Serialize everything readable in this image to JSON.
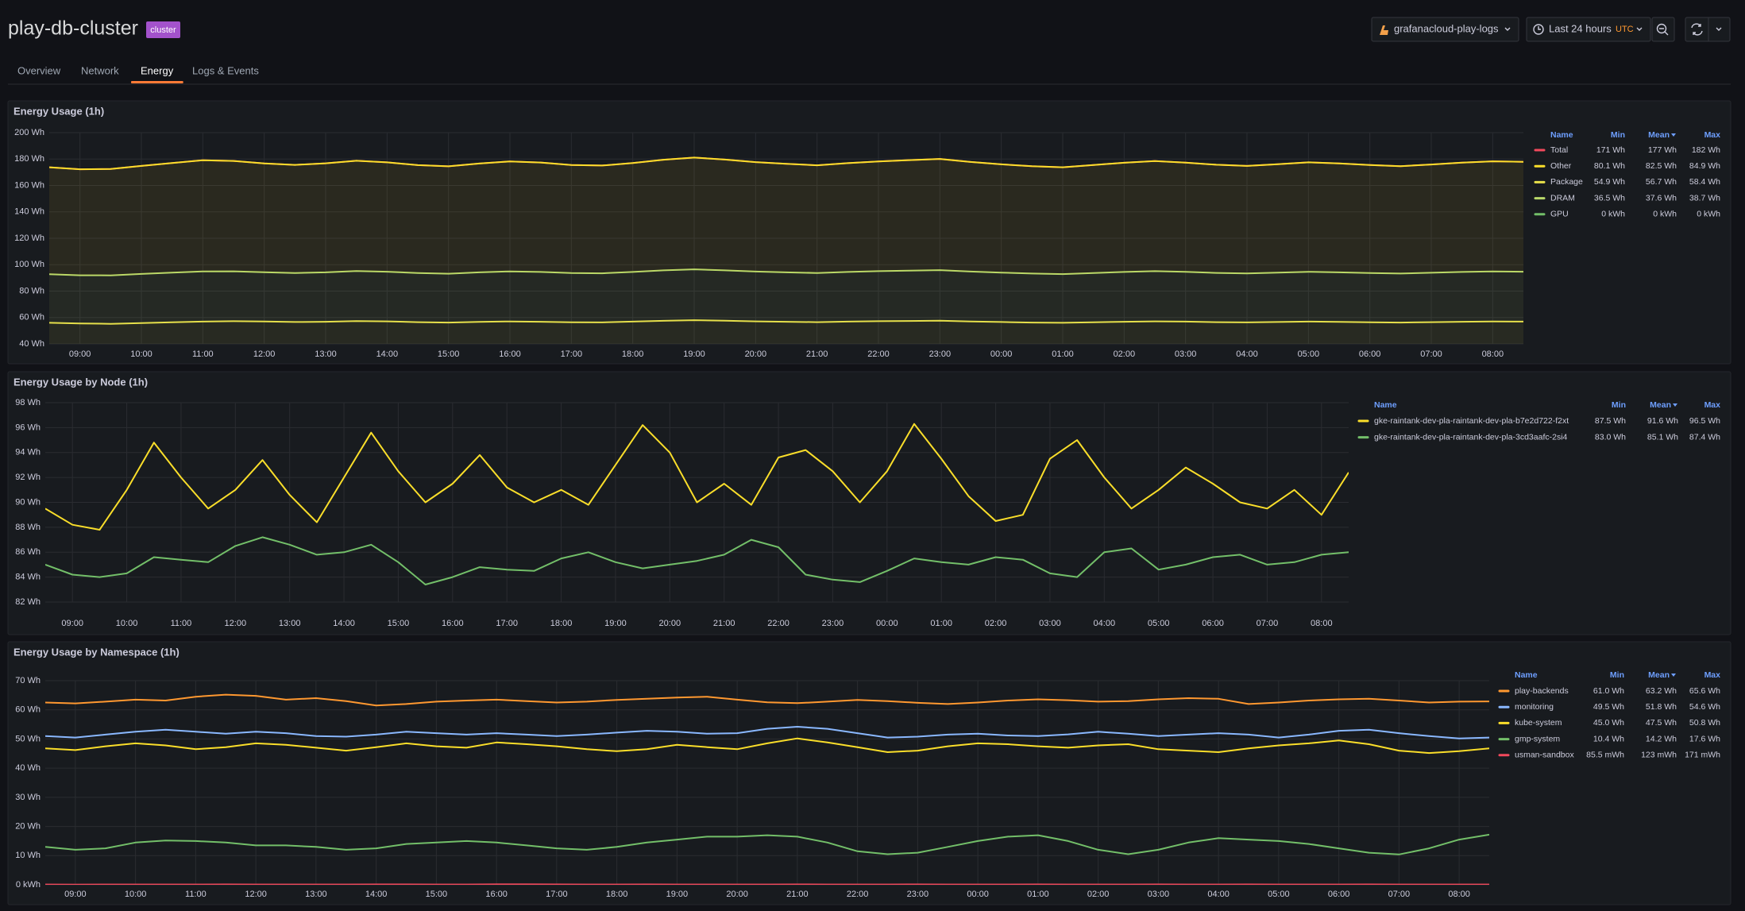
{
  "header": {
    "title": "play-db-cluster",
    "badge": "cluster"
  },
  "toolbar": {
    "datasource": "grafanacloud-play-logs",
    "time_range": "Last 24 hours",
    "timezone": "UTC"
  },
  "tabs": {
    "items": [
      "Overview",
      "Network",
      "Energy",
      "Logs & Events"
    ],
    "active": 2
  },
  "chart_data": [
    {
      "type": "line",
      "title": "Energy Usage (1h)",
      "grid": true,
      "fill_opacity": 0.08,
      "categories": [
        null,
        "09:00",
        null,
        "10:00",
        null,
        "11:00",
        null,
        "12:00",
        null,
        "13:00",
        null,
        "14:00",
        null,
        "15:00",
        null,
        "16:00",
        null,
        "17:00",
        null,
        "18:00",
        null,
        "19:00",
        null,
        "20:00",
        null,
        "21:00",
        null,
        "22:00",
        null,
        "23:00",
        null,
        "00:00",
        null,
        "01:00",
        null,
        "02:00",
        null,
        "03:00",
        null,
        "04:00",
        null,
        "05:00",
        null,
        "06:00",
        null,
        "07:00",
        null,
        "08:00",
        null
      ],
      "ylim": [
        40,
        200
      ],
      "yticks": [
        {
          "value": 40,
          "label": "40 Wh"
        },
        {
          "value": 60,
          "label": "60 Wh"
        },
        {
          "value": 80,
          "label": "80 Wh"
        },
        {
          "value": 100,
          "label": "100 Wh"
        },
        {
          "value": 120,
          "label": "120 Wh"
        },
        {
          "value": 140,
          "label": "140 Wh"
        },
        {
          "value": 160,
          "label": "160 Wh"
        },
        {
          "value": 180,
          "label": "180 Wh"
        },
        {
          "value": 200,
          "label": "200 Wh"
        }
      ],
      "legend_columns": [
        "Name",
        "Min",
        "Mean",
        "Max"
      ],
      "legend_sort_column": "Mean",
      "series": [
        {
          "name": "Total",
          "color": "#f2495c",
          "stats": [
            "171 Wh",
            "177 Wh",
            "182 Wh"
          ],
          "values": [
            173.8,
            172.3,
            172.5,
            174.8,
            177.0,
            179.1,
            178.6,
            176.7,
            175.6,
            176.8,
            178.7,
            177.5,
            175.4,
            174.5,
            176.6,
            178.2,
            177.4,
            175.5,
            175.1,
            177.0,
            179.5,
            181.1,
            179.6,
            177.7,
            176.4,
            175.3,
            176.9,
            178.2,
            179.2,
            180.1,
            177.8,
            176.0,
            174.6,
            173.8,
            175.5,
            177.2,
            178.5,
            177.3,
            175.7,
            174.8,
            176.1,
            177.5,
            176.7,
            175.5,
            174.6,
            175.9,
            177.3,
            178.3,
            177.9
          ]
        },
        {
          "name": "Other",
          "color": "#fade2a",
          "stack": 3,
          "stats": [
            "80.1 Wh",
            "82.5 Wh",
            "84.9 Wh"
          ],
          "values": [
            81.0,
            80.3,
            80.6,
            81.8,
            83.0,
            84.2,
            83.6,
            82.4,
            81.9,
            82.6,
            83.5,
            82.8,
            81.7,
            81.3,
            82.4,
            83.3,
            82.9,
            81.8,
            81.6,
            82.5,
            83.8,
            84.6,
            83.9,
            82.9,
            82.2,
            81.6,
            82.4,
            83.1,
            83.7,
            84.2,
            83.0,
            82.0,
            81.3,
            80.9,
            81.8,
            82.7,
            83.4,
            82.7,
            81.9,
            81.4,
            82.1,
            82.9,
            82.5,
            81.8,
            81.3,
            82.0,
            82.8,
            83.4,
            83.2
          ]
        },
        {
          "name": "Package",
          "color": "#e8e04a",
          "stack": 1,
          "stats": [
            "54.9 Wh",
            "56.7 Wh",
            "58.4 Wh"
          ],
          "values": [
            56,
            55.5,
            55.2,
            55.8,
            56.4,
            56.9,
            57.2,
            57.0,
            56.6,
            56.8,
            57.3,
            57.1,
            56.5,
            56.2,
            56.7,
            57.0,
            56.8,
            56.4,
            56.3,
            56.9,
            57.5,
            58.0,
            57.6,
            57.1,
            56.8,
            56.5,
            56.9,
            57.2,
            57.4,
            57.6,
            57.0,
            56.6,
            56.2,
            56.0,
            56.4,
            56.8,
            57.1,
            56.9,
            56.5,
            56.3,
            56.6,
            56.9,
            56.7,
            56.4,
            56.2,
            56.5,
            56.8,
            57.0,
            56.9
          ]
        },
        {
          "name": "DRAM",
          "color": "#b9d96a",
          "stack": 2,
          "stats": [
            "36.5 Wh",
            "37.6 Wh",
            "38.7 Wh"
          ],
          "values": [
            36.8,
            36.5,
            36.7,
            37.2,
            37.6,
            38.0,
            37.8,
            37.3,
            37.1,
            37.4,
            37.9,
            37.6,
            37.2,
            37.0,
            37.5,
            37.9,
            37.7,
            37.3,
            37.2,
            37.6,
            38.2,
            38.5,
            38.1,
            37.7,
            37.4,
            37.2,
            37.6,
            37.9,
            38.1,
            38.3,
            37.8,
            37.4,
            37.1,
            36.9,
            37.3,
            37.7,
            38.0,
            37.7,
            37.3,
            37.1,
            37.4,
            37.7,
            37.5,
            37.3,
            37.1,
            37.4,
            37.7,
            37.9,
            37.8
          ]
        },
        {
          "name": "GPU",
          "color": "#73bf69",
          "stack": 0,
          "stats": [
            "0 kWh",
            "0 kWh",
            "0 kWh"
          ],
          "values": [
            0,
            0,
            0,
            0,
            0,
            0,
            0,
            0,
            0,
            0,
            0,
            0,
            0,
            0,
            0,
            0,
            0,
            0,
            0,
            0,
            0,
            0,
            0,
            0,
            0,
            0,
            0,
            0,
            0,
            0,
            0,
            0,
            0,
            0,
            0,
            0,
            0,
            0,
            0,
            0,
            0,
            0,
            0,
            0,
            0,
            0,
            0,
            0,
            0
          ]
        }
      ]
    },
    {
      "type": "line",
      "title": "Energy Usage by Node (1h)",
      "grid": true,
      "categories": [
        null,
        "09:00",
        null,
        "10:00",
        null,
        "11:00",
        null,
        "12:00",
        null,
        "13:00",
        null,
        "14:00",
        null,
        "15:00",
        null,
        "16:00",
        null,
        "17:00",
        null,
        "18:00",
        null,
        "19:00",
        null,
        "20:00",
        null,
        "21:00",
        null,
        "22:00",
        null,
        "23:00",
        null,
        "00:00",
        null,
        "01:00",
        null,
        "02:00",
        null,
        "03:00",
        null,
        "04:00",
        null,
        "05:00",
        null,
        "06:00",
        null,
        "07:00",
        null,
        "08:00",
        null
      ],
      "ylim": [
        82,
        98
      ],
      "yticks": [
        {
          "value": 82,
          "label": "82 Wh"
        },
        {
          "value": 84,
          "label": "84 Wh"
        },
        {
          "value": 86,
          "label": "86 Wh"
        },
        {
          "value": 88,
          "label": "88 Wh"
        },
        {
          "value": 90,
          "label": "90 Wh"
        },
        {
          "value": 92,
          "label": "92 Wh"
        },
        {
          "value": 94,
          "label": "94 Wh"
        },
        {
          "value": 96,
          "label": "96 Wh"
        },
        {
          "value": 98,
          "label": "98 Wh"
        }
      ],
      "legend_columns": [
        "Name",
        "Min",
        "Mean",
        "Max"
      ],
      "legend_sort_column": "Mean",
      "series": [
        {
          "name": "gke-raintank-dev-pla-raintank-dev-pla-b7e2d722-f2xt",
          "color": "#fade2a",
          "stats": [
            "87.5 Wh",
            "91.6 Wh",
            "96.5 Wh"
          ],
          "values": [
            89.5,
            88.2,
            87.8,
            91.0,
            94.8,
            92.0,
            89.5,
            91.0,
            93.4,
            90.6,
            88.4,
            92.0,
            95.6,
            92.5,
            90.0,
            91.5,
            93.8,
            91.2,
            90.0,
            91.0,
            89.8,
            93.0,
            96.2,
            94.0,
            90.0,
            91.5,
            89.8,
            93.6,
            94.2,
            92.5,
            90.0,
            92.5,
            96.3,
            93.5,
            90.5,
            88.5,
            89.0,
            93.5,
            95.0,
            92.0,
            89.5,
            91.0,
            92.8,
            91.5,
            90.0,
            89.5,
            91.0,
            89.0,
            92.4
          ]
        },
        {
          "name": "gke-raintank-dev-pla-raintank-dev-pla-3cd3aafc-2si4",
          "color": "#73bf69",
          "stats": [
            "83.0 Wh",
            "85.1 Wh",
            "87.4 Wh"
          ],
          "values": [
            85.0,
            84.2,
            84.0,
            84.3,
            85.6,
            85.4,
            85.2,
            86.5,
            87.2,
            86.6,
            85.8,
            86.0,
            86.6,
            85.2,
            83.4,
            84.0,
            84.8,
            84.6,
            84.5,
            85.5,
            86.0,
            85.2,
            84.7,
            85.0,
            85.3,
            85.8,
            87.0,
            86.4,
            84.2,
            83.8,
            83.6,
            84.5,
            85.5,
            85.2,
            85.0,
            85.6,
            85.4,
            84.3,
            84.0,
            86.0,
            86.3,
            84.6,
            85.0,
            85.6,
            85.8,
            85.0,
            85.2,
            85.8,
            86.0
          ]
        }
      ]
    },
    {
      "type": "line",
      "title": "Energy Usage by Namespace (1h)",
      "grid": true,
      "categories": [
        null,
        "09:00",
        null,
        "10:00",
        null,
        "11:00",
        null,
        "12:00",
        null,
        "13:00",
        null,
        "14:00",
        null,
        "15:00",
        null,
        "16:00",
        null,
        "17:00",
        null,
        "18:00",
        null,
        "19:00",
        null,
        "20:00",
        null,
        "21:00",
        null,
        "22:00",
        null,
        "23:00",
        null,
        "00:00",
        null,
        "01:00",
        null,
        "02:00",
        null,
        "03:00",
        null,
        "04:00",
        null,
        "05:00",
        null,
        "06:00",
        null,
        "07:00",
        null,
        "08:00",
        null
      ],
      "ylim": [
        0,
        70
      ],
      "yticks": [
        {
          "value": 0,
          "label": "0 kWh"
        },
        {
          "value": 10,
          "label": "10 Wh"
        },
        {
          "value": 20,
          "label": "20 Wh"
        },
        {
          "value": 30,
          "label": "30 Wh"
        },
        {
          "value": 40,
          "label": "40 Wh"
        },
        {
          "value": 50,
          "label": "50 Wh"
        },
        {
          "value": 60,
          "label": "60 Wh"
        },
        {
          "value": 70,
          "label": "70 Wh"
        }
      ],
      "legend_columns": [
        "Name",
        "Min",
        "Mean",
        "Max"
      ],
      "legend_sort_column": "Mean",
      "series": [
        {
          "name": "play-backends",
          "color": "#ff9830",
          "stats": [
            "61.0 Wh",
            "63.2 Wh",
            "65.6 Wh"
          ],
          "values": [
            62.5,
            62.2,
            62.8,
            63.5,
            63.2,
            64.5,
            65.2,
            64.8,
            63.5,
            64.0,
            63.0,
            61.5,
            62.0,
            62.8,
            63.2,
            63.5,
            63.0,
            62.5,
            62.8,
            63.4,
            63.8,
            64.2,
            64.5,
            63.5,
            62.6,
            62.3,
            62.8,
            63.4,
            63.0,
            62.4,
            62.0,
            62.5,
            63.2,
            63.6,
            63.3,
            62.8,
            63.0,
            63.6,
            64.0,
            63.8,
            62.0,
            62.5,
            63.2,
            63.6,
            63.8,
            63.2,
            62.5,
            62.8,
            62.9
          ]
        },
        {
          "name": "monitoring",
          "color": "#8ab8ff",
          "stats": [
            "49.5 Wh",
            "51.8 Wh",
            "54.6 Wh"
          ],
          "values": [
            51.0,
            50.5,
            51.5,
            52.5,
            53.2,
            52.5,
            51.8,
            52.5,
            52.0,
            51.0,
            50.8,
            51.5,
            52.5,
            52.0,
            51.5,
            52.0,
            51.5,
            51.0,
            51.5,
            52.2,
            52.8,
            52.5,
            51.8,
            52.0,
            53.5,
            54.2,
            53.5,
            52.0,
            50.5,
            50.8,
            51.5,
            51.8,
            51.2,
            51.0,
            51.6,
            52.5,
            51.8,
            51.0,
            51.5,
            52.0,
            51.5,
            50.5,
            51.5,
            52.8,
            53.2,
            52.0,
            51.0,
            50.2,
            50.5
          ]
        },
        {
          "name": "kube-system",
          "color": "#fade2a",
          "stats": [
            "45.0 Wh",
            "47.5 Wh",
            "50.8 Wh"
          ],
          "values": [
            46.8,
            46.2,
            47.5,
            48.5,
            47.8,
            46.5,
            47.2,
            48.5,
            48.0,
            47.0,
            46.0,
            47.2,
            48.5,
            47.5,
            47.0,
            48.8,
            48.2,
            47.5,
            46.5,
            45.8,
            46.5,
            48.0,
            47.2,
            46.5,
            48.5,
            50.2,
            48.8,
            47.2,
            45.5,
            46.0,
            47.5,
            48.5,
            48.2,
            47.5,
            47.0,
            47.8,
            48.2,
            46.5,
            46.0,
            45.5,
            46.8,
            47.8,
            48.5,
            49.5,
            48.2,
            46.0,
            45.2,
            45.8,
            46.8
          ]
        },
        {
          "name": "gmp-system",
          "color": "#73bf69",
          "stats": [
            "10.4 Wh",
            "14.2 Wh",
            "17.6 Wh"
          ],
          "values": [
            13.0,
            12.0,
            12.5,
            14.5,
            15.2,
            15.0,
            14.5,
            13.5,
            13.5,
            13.0,
            12.0,
            12.5,
            14.0,
            14.5,
            15.0,
            14.5,
            13.5,
            12.5,
            12.0,
            13.0,
            14.5,
            15.5,
            16.5,
            16.5,
            17.0,
            16.5,
            14.5,
            11.5,
            10.5,
            11.0,
            13.0,
            15.0,
            16.5,
            17.0,
            15.0,
            12.0,
            10.5,
            12.0,
            14.5,
            16.0,
            15.5,
            15.0,
            14.0,
            12.5,
            11.0,
            10.4,
            12.5,
            15.5,
            17.2
          ]
        },
        {
          "name": "usman-sandbox",
          "color": "#f2495c",
          "stats": [
            "85.5 mWh",
            "123 mWh",
            "171 mWh"
          ],
          "values": [
            0.1,
            0.09,
            0.1,
            0.12,
            0.11,
            0.1,
            0.13,
            0.12,
            0.11,
            0.1,
            0.12,
            0.14,
            0.13,
            0.12,
            0.11,
            0.15,
            0.17,
            0.14,
            0.12,
            0.11,
            0.13,
            0.12,
            0.1,
            0.11,
            0.12,
            0.13,
            0.12,
            0.11,
            0.12,
            0.13,
            0.12,
            0.11,
            0.12,
            0.13,
            0.12,
            0.12,
            0.11,
            0.13,
            0.12,
            0.12,
            0.13,
            0.12,
            0.11,
            0.12,
            0.13,
            0.12,
            0.12,
            0.11,
            0.12
          ]
        }
      ]
    }
  ]
}
